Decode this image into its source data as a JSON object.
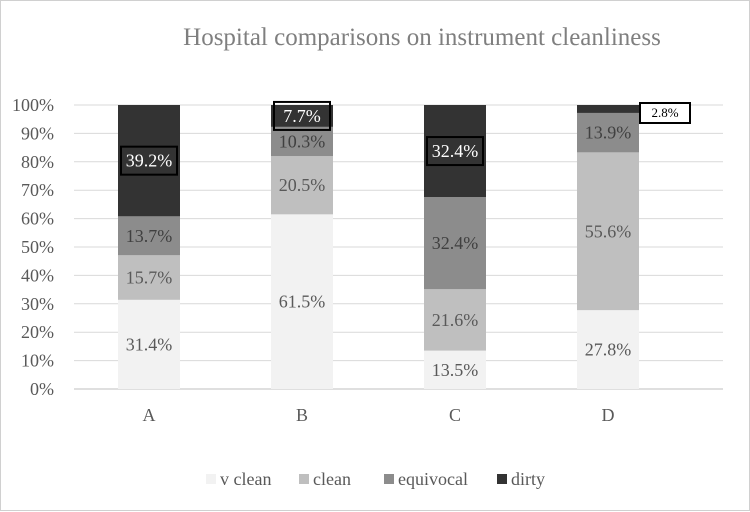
{
  "chart_data": {
    "type": "bar",
    "stacked": "percent",
    "title": "Hospital comparisons on instrument cleanliness",
    "xlabel": "",
    "ylabel": "",
    "categories": [
      "A",
      "B",
      "C",
      "D"
    ],
    "ylim": [
      0,
      100
    ],
    "yticks": [
      "0%",
      "10%",
      "20%",
      "30%",
      "40%",
      "50%",
      "60%",
      "70%",
      "80%",
      "90%",
      "100%"
    ],
    "grid": true,
    "legend_position": "bottom",
    "series": [
      {
        "name": "v clean",
        "color": "#f2f2f2",
        "label_color": "#595959",
        "values": [
          31.4,
          61.5,
          13.5,
          27.8
        ],
        "labels": [
          "31.4%",
          "61.5%",
          "13.5%",
          "27.8%"
        ]
      },
      {
        "name": "clean",
        "color": "#bfbfbf",
        "label_color": "#595959",
        "values": [
          15.7,
          20.5,
          21.6,
          55.6
        ],
        "labels": [
          "15.7%",
          "20.5%",
          "21.6%",
          "55.6%"
        ]
      },
      {
        "name": "equivocal",
        "color": "#8c8c8c",
        "label_color": "#404040",
        "values": [
          13.7,
          10.3,
          32.4,
          13.9
        ],
        "labels": [
          "13.7%",
          "10.3%",
          "32.4%",
          "13.9%"
        ]
      },
      {
        "name": "dirty",
        "color": "#333333",
        "label_color": "#ffffff",
        "values": [
          39.2,
          7.7,
          32.4,
          2.8
        ],
        "labels": [
          "39.2%",
          "7.7%",
          "32.4%",
          "2.8%"
        ],
        "boxed_labels": true
      }
    ]
  }
}
